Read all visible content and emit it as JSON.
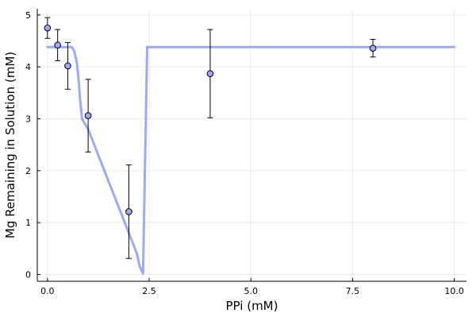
{
  "chart_data": {
    "type": "scatter",
    "xlabel": "PPi (mM)",
    "ylabel": "Mg Remaining in Solution (mM)",
    "xlim": [
      -0.25,
      10.3
    ],
    "ylim": [
      -0.13,
      5.12
    ],
    "xticks": [
      {
        "value": 0,
        "label": "0.0"
      },
      {
        "value": 2.5,
        "label": "2.5"
      },
      {
        "value": 5,
        "label": "5.0"
      },
      {
        "value": 7.5,
        "label": "7.5"
      },
      {
        "value": 10,
        "label": "10.0"
      }
    ],
    "yticks": [
      {
        "value": 0,
        "label": "0"
      },
      {
        "value": 1,
        "label": "1"
      },
      {
        "value": 2,
        "label": "2"
      },
      {
        "value": 3,
        "label": "3"
      },
      {
        "value": 4,
        "label": "4"
      },
      {
        "value": 5,
        "label": "5"
      }
    ],
    "grid": true,
    "legend": "none",
    "series": [
      {
        "kind": "line",
        "color": "#9aaaf7",
        "x": [
          0,
          0.6,
          0.66,
          0.72,
          0.76,
          0.8,
          0.85,
          1.0,
          1.5,
          2.0,
          2.1,
          2.2,
          2.27,
          2.35,
          2.45,
          2.5,
          10.0
        ],
        "y": [
          4.38,
          4.38,
          4.3,
          4.1,
          3.8,
          3.4,
          3.0,
          2.8,
          1.8,
          0.8,
          0.6,
          0.4,
          0.15,
          0.02,
          4.38,
          4.38,
          4.38
        ]
      },
      {
        "kind": "points",
        "color": "#9aaaf7",
        "x": [
          0,
          0.25,
          0.5,
          1,
          2,
          4,
          8
        ],
        "y": [
          4.75,
          4.42,
          4.02,
          3.06,
          1.21,
          3.87,
          4.36
        ],
        "yerr": [
          0.2,
          0.3,
          0.45,
          0.7,
          0.9,
          0.85,
          0.17
        ]
      }
    ]
  }
}
